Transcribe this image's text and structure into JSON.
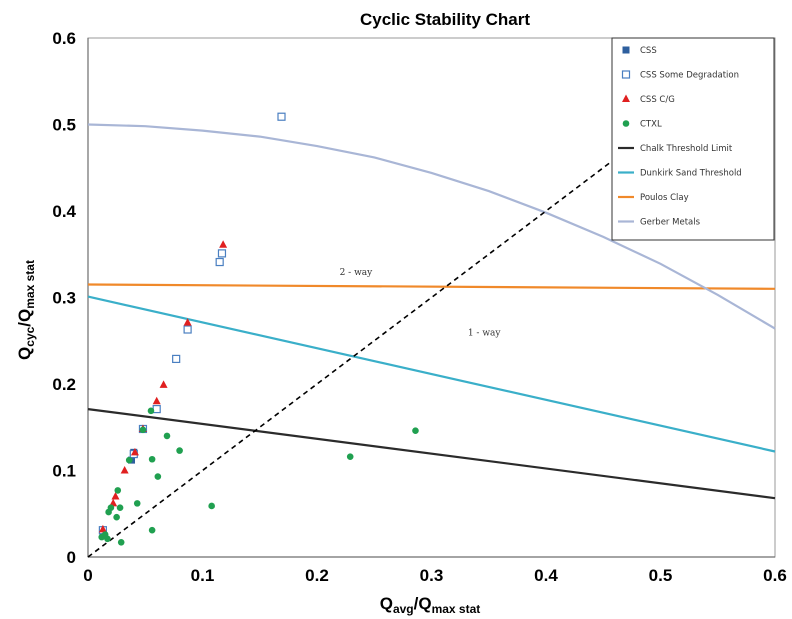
{
  "chart_data": {
    "type": "scatter",
    "title": "Cyclic Stability Chart",
    "xlabel": {
      "main": "Q",
      "sub1": "avg",
      "sep": "/Q",
      "sub2": "max stat"
    },
    "ylabel": {
      "main": "Q",
      "sub1": "cyc",
      "sep": "/Q",
      "sub2": "max stat"
    },
    "xlim": [
      0,
      0.6
    ],
    "ylim": [
      0,
      0.6
    ],
    "xticks": [
      {
        "v": 0,
        "label": "0"
      },
      {
        "v": 0.1,
        "label": "0.1"
      },
      {
        "v": 0.2,
        "label": "0.2"
      },
      {
        "v": 0.3,
        "label": "0.3"
      },
      {
        "v": 0.4,
        "label": "0.4"
      },
      {
        "v": 0.5,
        "label": "0.5"
      },
      {
        "v": 0.6,
        "label": "0.6"
      }
    ],
    "yticks": [
      {
        "v": 0,
        "label": "0"
      },
      {
        "v": 0.1,
        "label": "0.1"
      },
      {
        "v": 0.2,
        "label": "0.2"
      },
      {
        "v": 0.3,
        "label": "0.3"
      },
      {
        "v": 0.4,
        "label": "0.4"
      },
      {
        "v": 0.5,
        "label": "0.5"
      },
      {
        "v": 0.6,
        "label": "0.6"
      }
    ],
    "grid": false,
    "legend_position": "top-right",
    "series": [
      {
        "name": "CSS",
        "kind": "scatter",
        "marker": "square-filled",
        "color": "#2e5f9e",
        "points": [
          [
            0.038,
            0.112
          ],
          [
            0.04,
            0.121
          ],
          [
            0.013,
            0.03
          ]
        ]
      },
      {
        "name": "CSS Some Degradation",
        "kind": "scatter",
        "marker": "square-open",
        "color": "#4a7fc1",
        "points": [
          [
            0.169,
            0.509
          ],
          [
            0.117,
            0.351
          ],
          [
            0.115,
            0.341
          ],
          [
            0.087,
            0.263
          ],
          [
            0.077,
            0.229
          ],
          [
            0.06,
            0.171
          ],
          [
            0.04,
            0.119
          ],
          [
            0.048,
            0.148
          ],
          [
            0.013,
            0.031
          ]
        ]
      },
      {
        "name": "CSS C/G",
        "kind": "scatter",
        "marker": "triangle",
        "color": "#e02020",
        "points": [
          [
            0.118,
            0.361
          ],
          [
            0.087,
            0.271
          ],
          [
            0.066,
            0.199
          ],
          [
            0.06,
            0.18
          ],
          [
            0.048,
            0.148
          ],
          [
            0.041,
            0.121
          ],
          [
            0.032,
            0.1
          ],
          [
            0.024,
            0.07
          ],
          [
            0.022,
            0.062
          ],
          [
            0.013,
            0.032
          ]
        ]
      },
      {
        "name": "CTXL",
        "kind": "scatter",
        "marker": "dot",
        "color": "#20a050",
        "points": [
          [
            0.286,
            0.146
          ],
          [
            0.229,
            0.116
          ],
          [
            0.055,
            0.169
          ],
          [
            0.069,
            0.14
          ],
          [
            0.08,
            0.123
          ],
          [
            0.056,
            0.113
          ],
          [
            0.061,
            0.093
          ],
          [
            0.036,
            0.112
          ],
          [
            0.048,
            0.147
          ],
          [
            0.043,
            0.062
          ],
          [
            0.108,
            0.059
          ],
          [
            0.026,
            0.077
          ],
          [
            0.018,
            0.052
          ],
          [
            0.02,
            0.057
          ],
          [
            0.028,
            0.057
          ],
          [
            0.025,
            0.046
          ],
          [
            0.056,
            0.031
          ],
          [
            0.015,
            0.026
          ],
          [
            0.029,
            0.017
          ],
          [
            0.012,
            0.023
          ],
          [
            0.017,
            0.021
          ]
        ]
      },
      {
        "name": "Chalk Threshold Limit",
        "kind": "line",
        "color": "#2b2b2b",
        "points": [
          [
            0,
            0.171
          ],
          [
            0.6,
            0.068
          ]
        ]
      },
      {
        "name": "Dunkirk Sand Threshold",
        "kind": "line",
        "color": "#3aafc9",
        "points": [
          [
            0,
            0.301
          ],
          [
            0.6,
            0.122
          ]
        ]
      },
      {
        "name": "Poulos Clay",
        "kind": "line",
        "color": "#f0892a",
        "points": [
          [
            0,
            0.315
          ],
          [
            0.6,
            0.31
          ]
        ]
      },
      {
        "name": "Gerber Metals",
        "kind": "line",
        "color": "#a9b6d6",
        "points": [
          [
            0,
            0.5
          ],
          [
            0.05,
            0.498
          ],
          [
            0.1,
            0.493
          ],
          [
            0.15,
            0.486
          ],
          [
            0.2,
            0.475
          ],
          [
            0.25,
            0.462
          ],
          [
            0.3,
            0.444
          ],
          [
            0.35,
            0.423
          ],
          [
            0.4,
            0.398
          ],
          [
            0.45,
            0.37
          ],
          [
            0.5,
            0.339
          ],
          [
            0.55,
            0.303
          ],
          [
            0.6,
            0.264
          ]
        ]
      }
    ],
    "reference_line": {
      "kind": "dashed",
      "color": "#000000",
      "points": [
        [
          0,
          0
        ],
        [
          0.457,
          0.457
        ]
      ]
    },
    "annotations": [
      {
        "text": "2 - way",
        "x": 0.234,
        "y": 0.326
      },
      {
        "text": "1 - way",
        "x": 0.346,
        "y": 0.256
      }
    ]
  }
}
